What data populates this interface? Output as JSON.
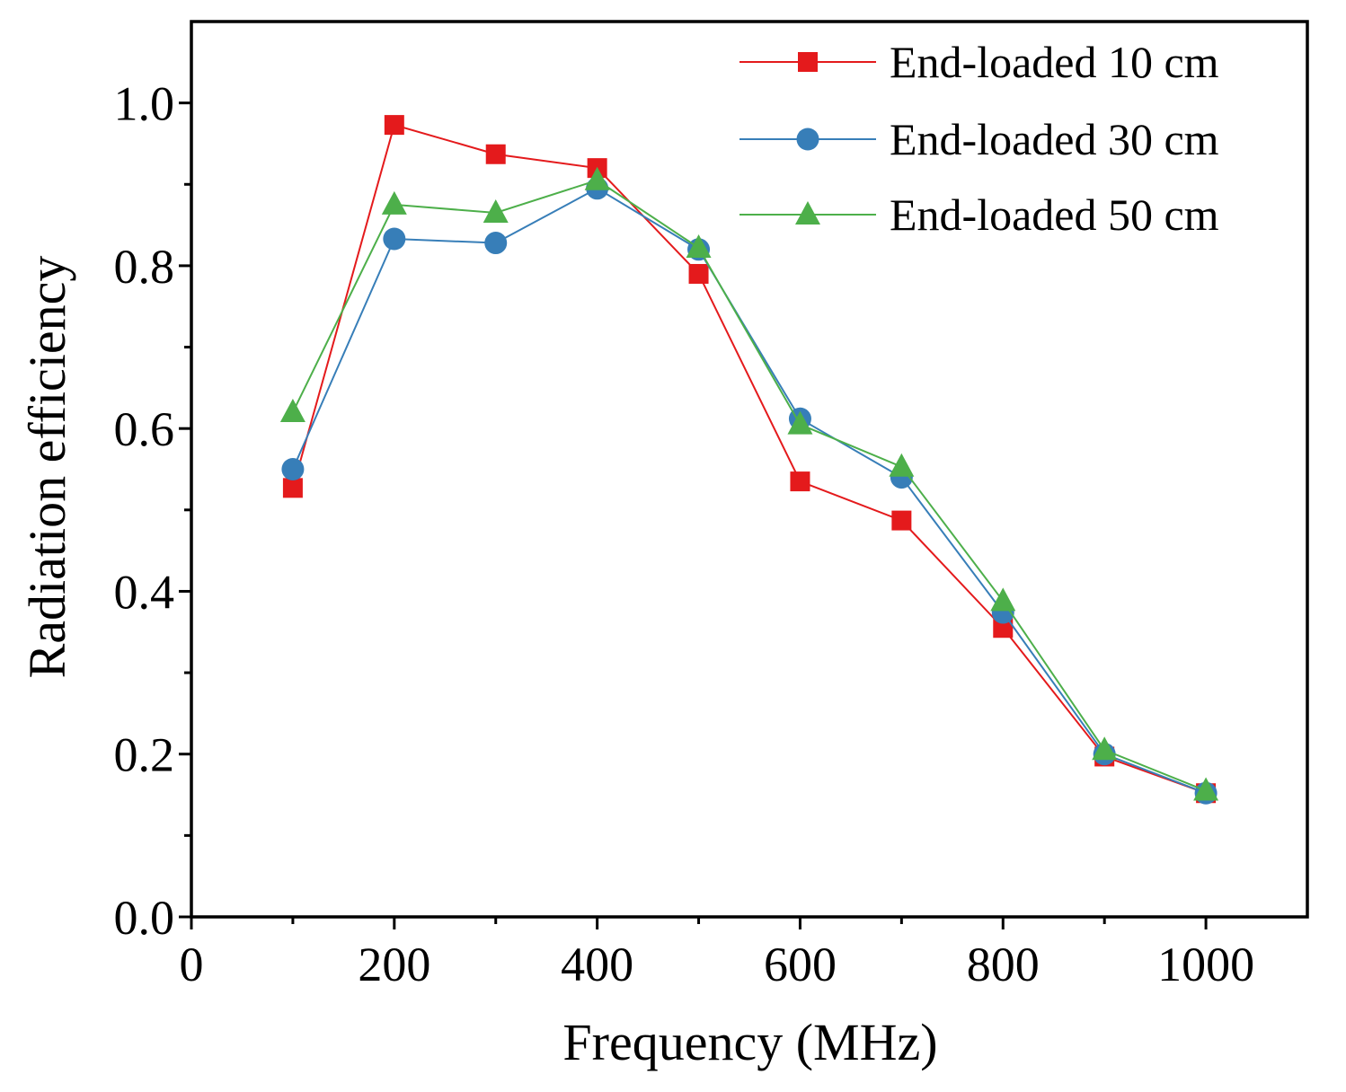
{
  "chart_data": {
    "type": "line",
    "title": "",
    "xlabel": "Frequency (MHz)",
    "ylabel": "Radiation efficiency",
    "xlim": [
      0,
      1100
    ],
    "ylim": [
      0.0,
      1.1
    ],
    "x_ticks": [
      0,
      200,
      400,
      600,
      800,
      1000
    ],
    "x_tick_labels": [
      "0",
      "200",
      "400",
      "600",
      "800",
      "1000"
    ],
    "x_minor_ticks": [
      100,
      300,
      500,
      700,
      900
    ],
    "y_ticks": [
      0.0,
      0.2,
      0.4,
      0.6,
      0.8,
      1.0
    ],
    "y_tick_labels": [
      "0.0",
      "0.2",
      "0.4",
      "0.6",
      "0.8",
      "1.0"
    ],
    "y_minor_ticks": [
      0.1,
      0.3,
      0.5,
      0.7,
      0.9
    ],
    "grid": false,
    "legend_position": "top-right",
    "x": [
      100,
      200,
      300,
      400,
      500,
      600,
      700,
      800,
      900,
      1000
    ],
    "series": [
      {
        "name": "End-loaded 10 cm",
        "color": "#e41a1c",
        "marker": "square",
        "values": [
          0.527,
          0.973,
          0.937,
          0.92,
          0.79,
          0.535,
          0.487,
          0.355,
          0.197,
          0.152
        ]
      },
      {
        "name": "End-loaded 30 cm",
        "color": "#377eb8",
        "marker": "circle",
        "values": [
          0.55,
          0.833,
          0.828,
          0.895,
          0.82,
          0.612,
          0.54,
          0.374,
          0.2,
          0.152
        ]
      },
      {
        "name": "End-loaded 50 cm",
        "color": "#4daf4a",
        "marker": "triangle",
        "values": [
          0.62,
          0.875,
          0.865,
          0.905,
          0.822,
          0.605,
          0.553,
          0.388,
          0.205,
          0.155
        ]
      }
    ]
  }
}
